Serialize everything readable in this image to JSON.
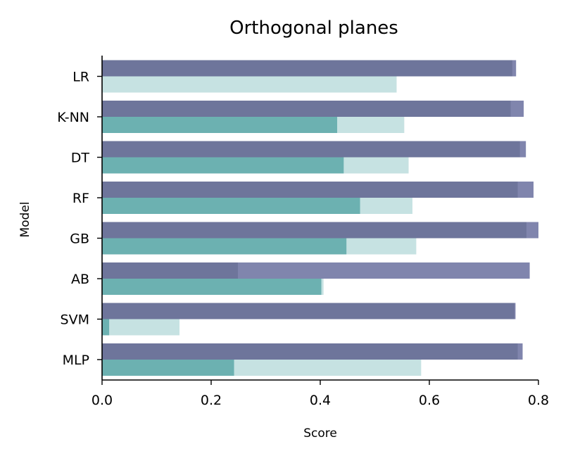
{
  "chart_data": {
    "type": "bar",
    "orientation": "horizontal",
    "title": "Orthogonal planes",
    "xlabel": "Score",
    "ylabel": "Model",
    "xlim": [
      0,
      0.8
    ],
    "x_ticks": [
      "0.0",
      "0.2",
      "0.4",
      "0.6",
      "0.8"
    ],
    "x_tick_values": [
      0,
      0.2,
      0.4,
      0.6,
      0.8
    ],
    "categories": [
      "LR",
      "K-NN",
      "DT",
      "RF",
      "GB",
      "AB",
      "SVM",
      "MLP"
    ],
    "grid": false,
    "legend": "none",
    "series": [
      {
        "group": "upper",
        "layer": "back",
        "color": "#8085ad",
        "values": [
          0.759,
          0.773,
          0.777,
          0.791,
          0.8,
          0.784,
          0.758,
          0.771
        ]
      },
      {
        "group": "upper",
        "layer": "front",
        "color": "#6e759b",
        "values": [
          0.752,
          0.749,
          0.766,
          0.762,
          0.778,
          0.249,
          0.756,
          0.762
        ]
      },
      {
        "group": "lower",
        "layer": "back",
        "color": "#c6e2e2",
        "values": [
          0.54,
          0.554,
          0.562,
          0.569,
          0.576,
          0.406,
          0.142,
          0.585
        ]
      },
      {
        "group": "lower",
        "layer": "front",
        "color": "#6cb1b1",
        "values": [
          0.0,
          0.431,
          0.443,
          0.473,
          0.448,
          0.402,
          0.013,
          0.242
        ]
      }
    ]
  }
}
